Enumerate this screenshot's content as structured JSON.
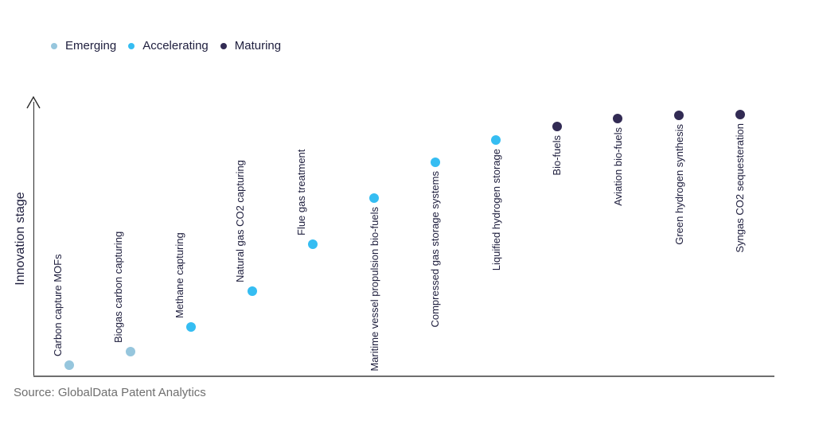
{
  "legend": {
    "items": [
      {
        "label": "Emerging",
        "color": "#96C6DD"
      },
      {
        "label": "Accelerating",
        "color": "#35BDF2"
      },
      {
        "label": "Maturing",
        "color": "#322B54"
      }
    ]
  },
  "chart_data": {
    "type": "scatter",
    "title": "",
    "xlabel": "",
    "ylabel": "Innovation stage",
    "y_axis": {
      "min": 0,
      "max": 1,
      "ticks": [],
      "style": "qualitative axis with upward arrow, no gridlines"
    },
    "legend_position": "top-left",
    "stage_colors": {
      "Emerging": "#96C6DD",
      "Accelerating": "#35BDF2",
      "Maturing": "#322B54"
    },
    "points": [
      {
        "label": "Carbon capture MOFs",
        "stage": "Emerging",
        "value": 0.04,
        "label_side": "above"
      },
      {
        "label": "Biogas carbon capturing",
        "stage": "Emerging",
        "value": 0.09,
        "label_side": "above"
      },
      {
        "label": "Methane capturing",
        "stage": "Accelerating",
        "value": 0.18,
        "label_side": "above"
      },
      {
        "label": "Natural gas CO2 capturing",
        "stage": "Accelerating",
        "value": 0.31,
        "label_side": "above"
      },
      {
        "label": "Flue gas treatment",
        "stage": "Accelerating",
        "value": 0.48,
        "label_side": "above"
      },
      {
        "label": "Maritime vessel propulsion bio-fuels",
        "stage": "Accelerating",
        "value": 0.65,
        "label_side": "below"
      },
      {
        "label": "Compressed gas storage systems",
        "stage": "Accelerating",
        "value": 0.78,
        "label_side": "below"
      },
      {
        "label": "Liquified hydrogen storage",
        "stage": "Accelerating",
        "value": 0.86,
        "label_side": "below"
      },
      {
        "label": "Bio-fuels",
        "stage": "Maturing",
        "value": 0.91,
        "label_side": "below"
      },
      {
        "label": "Aviation bio-fuels",
        "stage": "Maturing",
        "value": 0.94,
        "label_side": "below"
      },
      {
        "label": "Green hydrogen synthesis",
        "stage": "Maturing",
        "value": 0.95,
        "label_side": "below"
      },
      {
        "label": "Syngas CO2 sequesteration",
        "stage": "Maturing",
        "value": 0.955,
        "label_side": "below"
      }
    ]
  },
  "footer": {
    "source": "Source: GlobalData Patent Analytics"
  },
  "colors": {
    "background": "#FFFFFF",
    "text": "#20203F",
    "x_axis": "#6E6E6E",
    "y_axis": "#2B2B2B",
    "source_text": "#6F6F6F"
  }
}
